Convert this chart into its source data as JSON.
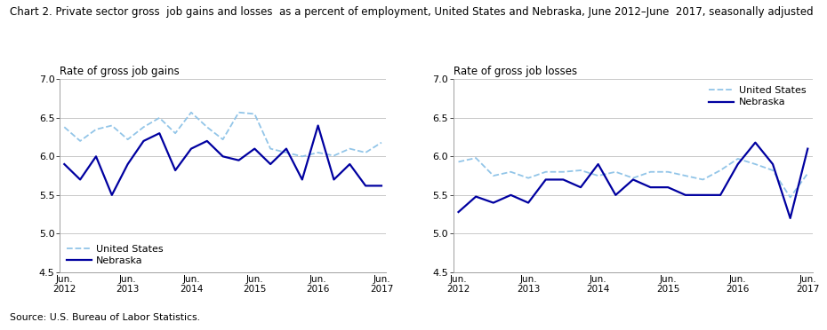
{
  "title_line1": "Chart 2. Private sector gross  job gains and losses  as a percent of employment, United States and Nebraska, June 2012–June  2017, seasonally adjusted",
  "title_fontsize": 8.5,
  "source": "Source: U.S. Bureau of Labor Statistics.",
  "left_subtitle": "Rate of gross job gains",
  "right_subtitle": "Rate of gross job losses",
  "gains_us": [
    6.38,
    6.2,
    6.35,
    6.4,
    6.22,
    6.38,
    6.5,
    6.3,
    6.57,
    6.38,
    6.22,
    6.57,
    6.55,
    6.1,
    6.05,
    6.0,
    6.05,
    6.01,
    6.1,
    6.05,
    6.18
  ],
  "gains_ne": [
    5.9,
    5.7,
    6.0,
    5.5,
    5.9,
    6.2,
    6.3,
    5.82,
    6.1,
    6.2,
    6.0,
    5.95,
    6.1,
    5.9,
    6.1,
    5.7,
    6.4,
    5.7,
    5.9,
    5.62,
    5.62
  ],
  "losses_us": [
    5.93,
    5.98,
    5.75,
    5.8,
    5.72,
    5.8,
    5.8,
    5.82,
    5.75,
    5.8,
    5.72,
    5.8,
    5.8,
    5.75,
    5.7,
    5.82,
    5.97,
    5.9,
    5.82,
    5.47,
    5.78
  ],
  "losses_ne": [
    5.28,
    5.48,
    5.4,
    5.5,
    5.4,
    5.7,
    5.7,
    5.6,
    5.9,
    5.5,
    5.7,
    5.6,
    5.6,
    5.5,
    5.5,
    5.5,
    5.9,
    6.18,
    5.9,
    5.2,
    6.1
  ],
  "ylim": [
    4.5,
    7.0
  ],
  "yticks": [
    4.5,
    5.0,
    5.5,
    6.0,
    6.5,
    7.0
  ],
  "tick_pos": [
    0,
    4,
    8,
    12,
    16,
    20
  ],
  "tick_labels": [
    "Jun.\n2012",
    "Jun.\n2013",
    "Jun.\n2014",
    "Jun.\n2015",
    "Jun.\n2016",
    "Jun.\n2017"
  ],
  "color_us": "#92C5E8",
  "color_ne": "#0000A0",
  "lw_us": 1.3,
  "lw_ne": 1.6
}
